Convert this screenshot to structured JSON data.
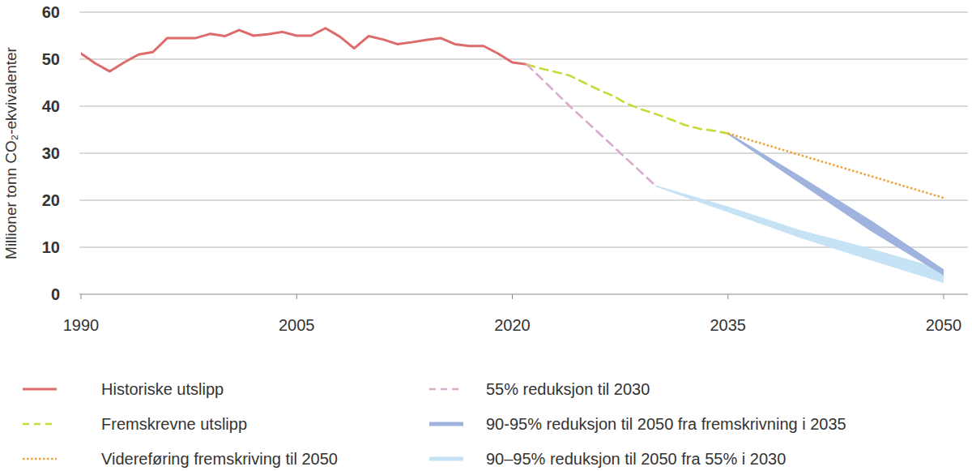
{
  "chart_data": {
    "type": "line",
    "y_label": "Millioner tonn CO₂-ekvivalenter",
    "xlim": [
      1990,
      2050
    ],
    "xticks": [
      1990,
      2005,
      2020,
      2035,
      2050
    ],
    "ylim": [
      0,
      60
    ],
    "yticks": [
      0,
      10,
      20,
      30,
      40,
      50,
      60
    ],
    "grid": true,
    "legend": "bottom",
    "series": [
      {
        "name": "Historiske utslipp",
        "color": "#de6b6b",
        "type": "line",
        "line_style": "solid",
        "x": [
          1990,
          1991,
          1992,
          1993,
          1994,
          1995,
          1996,
          1997,
          1998,
          1999,
          2000,
          2001,
          2002,
          2003,
          2004,
          2005,
          2006,
          2007,
          2008,
          2009,
          2010,
          2011,
          2012,
          2013,
          2014,
          2015,
          2016,
          2017,
          2018,
          2019,
          2020,
          2021
        ],
        "values": [
          51.2,
          49.1,
          47.4,
          49.3,
          51.0,
          51.5,
          54.5,
          54.5,
          54.5,
          55.4,
          54.9,
          56.2,
          55.0,
          55.3,
          55.8,
          55.0,
          55.0,
          56.6,
          54.8,
          52.3,
          54.9,
          54.2,
          53.2,
          53.6,
          54.1,
          54.5,
          53.2,
          52.8,
          52.8,
          51.2,
          49.3,
          48.9
        ]
      },
      {
        "name": "Fremskrevne utslipp",
        "color": "#c9d93c",
        "type": "line",
        "line_style": "dashed",
        "x": [
          2021,
          2022,
          2023,
          2024,
          2025,
          2026,
          2027,
          2028,
          2029,
          2030,
          2031,
          2032,
          2033,
          2034,
          2035
        ],
        "values": [
          48.9,
          48.0,
          47.3,
          46.5,
          45.0,
          43.5,
          42.2,
          40.5,
          39.3,
          38.3,
          37.2,
          36.0,
          35.2,
          34.8,
          34.2
        ]
      },
      {
        "name": "Videreføring fremskriving til 2050",
        "color": "#f0a23a",
        "type": "line",
        "line_style": "dotted",
        "x": [
          2035,
          2050
        ],
        "values": [
          34.2,
          20.5
        ]
      },
      {
        "name": "55% reduksjon til 2030",
        "color": "#d9aacd",
        "type": "line",
        "line_style": "dashed",
        "x": [
          2021,
          2024,
          2027,
          2030
        ],
        "values": [
          48.9,
          40.0,
          31.5,
          23.0
        ]
      },
      {
        "name": "90-95% reduksjon til 2050 fra fremskrivning i 2035",
        "color": "#9fb3de",
        "type": "band",
        "line_style": "solid",
        "x": [
          2035,
          2040,
          2045,
          2050
        ],
        "values": [
          34.2,
          25.0,
          15.4,
          5.1
        ],
        "lower": [
          34.2,
          23.8,
          13.5,
          4.2
        ]
      },
      {
        "name": "90–95% reduksjon til 2050 fra 55% i 2030",
        "color": "#c6e2f5",
        "type": "band",
        "line_style": "solid",
        "x": [
          2030,
          2035,
          2040,
          2045,
          2050
        ],
        "values": [
          23.0,
          18.5,
          13.5,
          9.5,
          5.1
        ],
        "lower": [
          23.0,
          17.6,
          12.2,
          7.3,
          2.6
        ]
      }
    ]
  }
}
